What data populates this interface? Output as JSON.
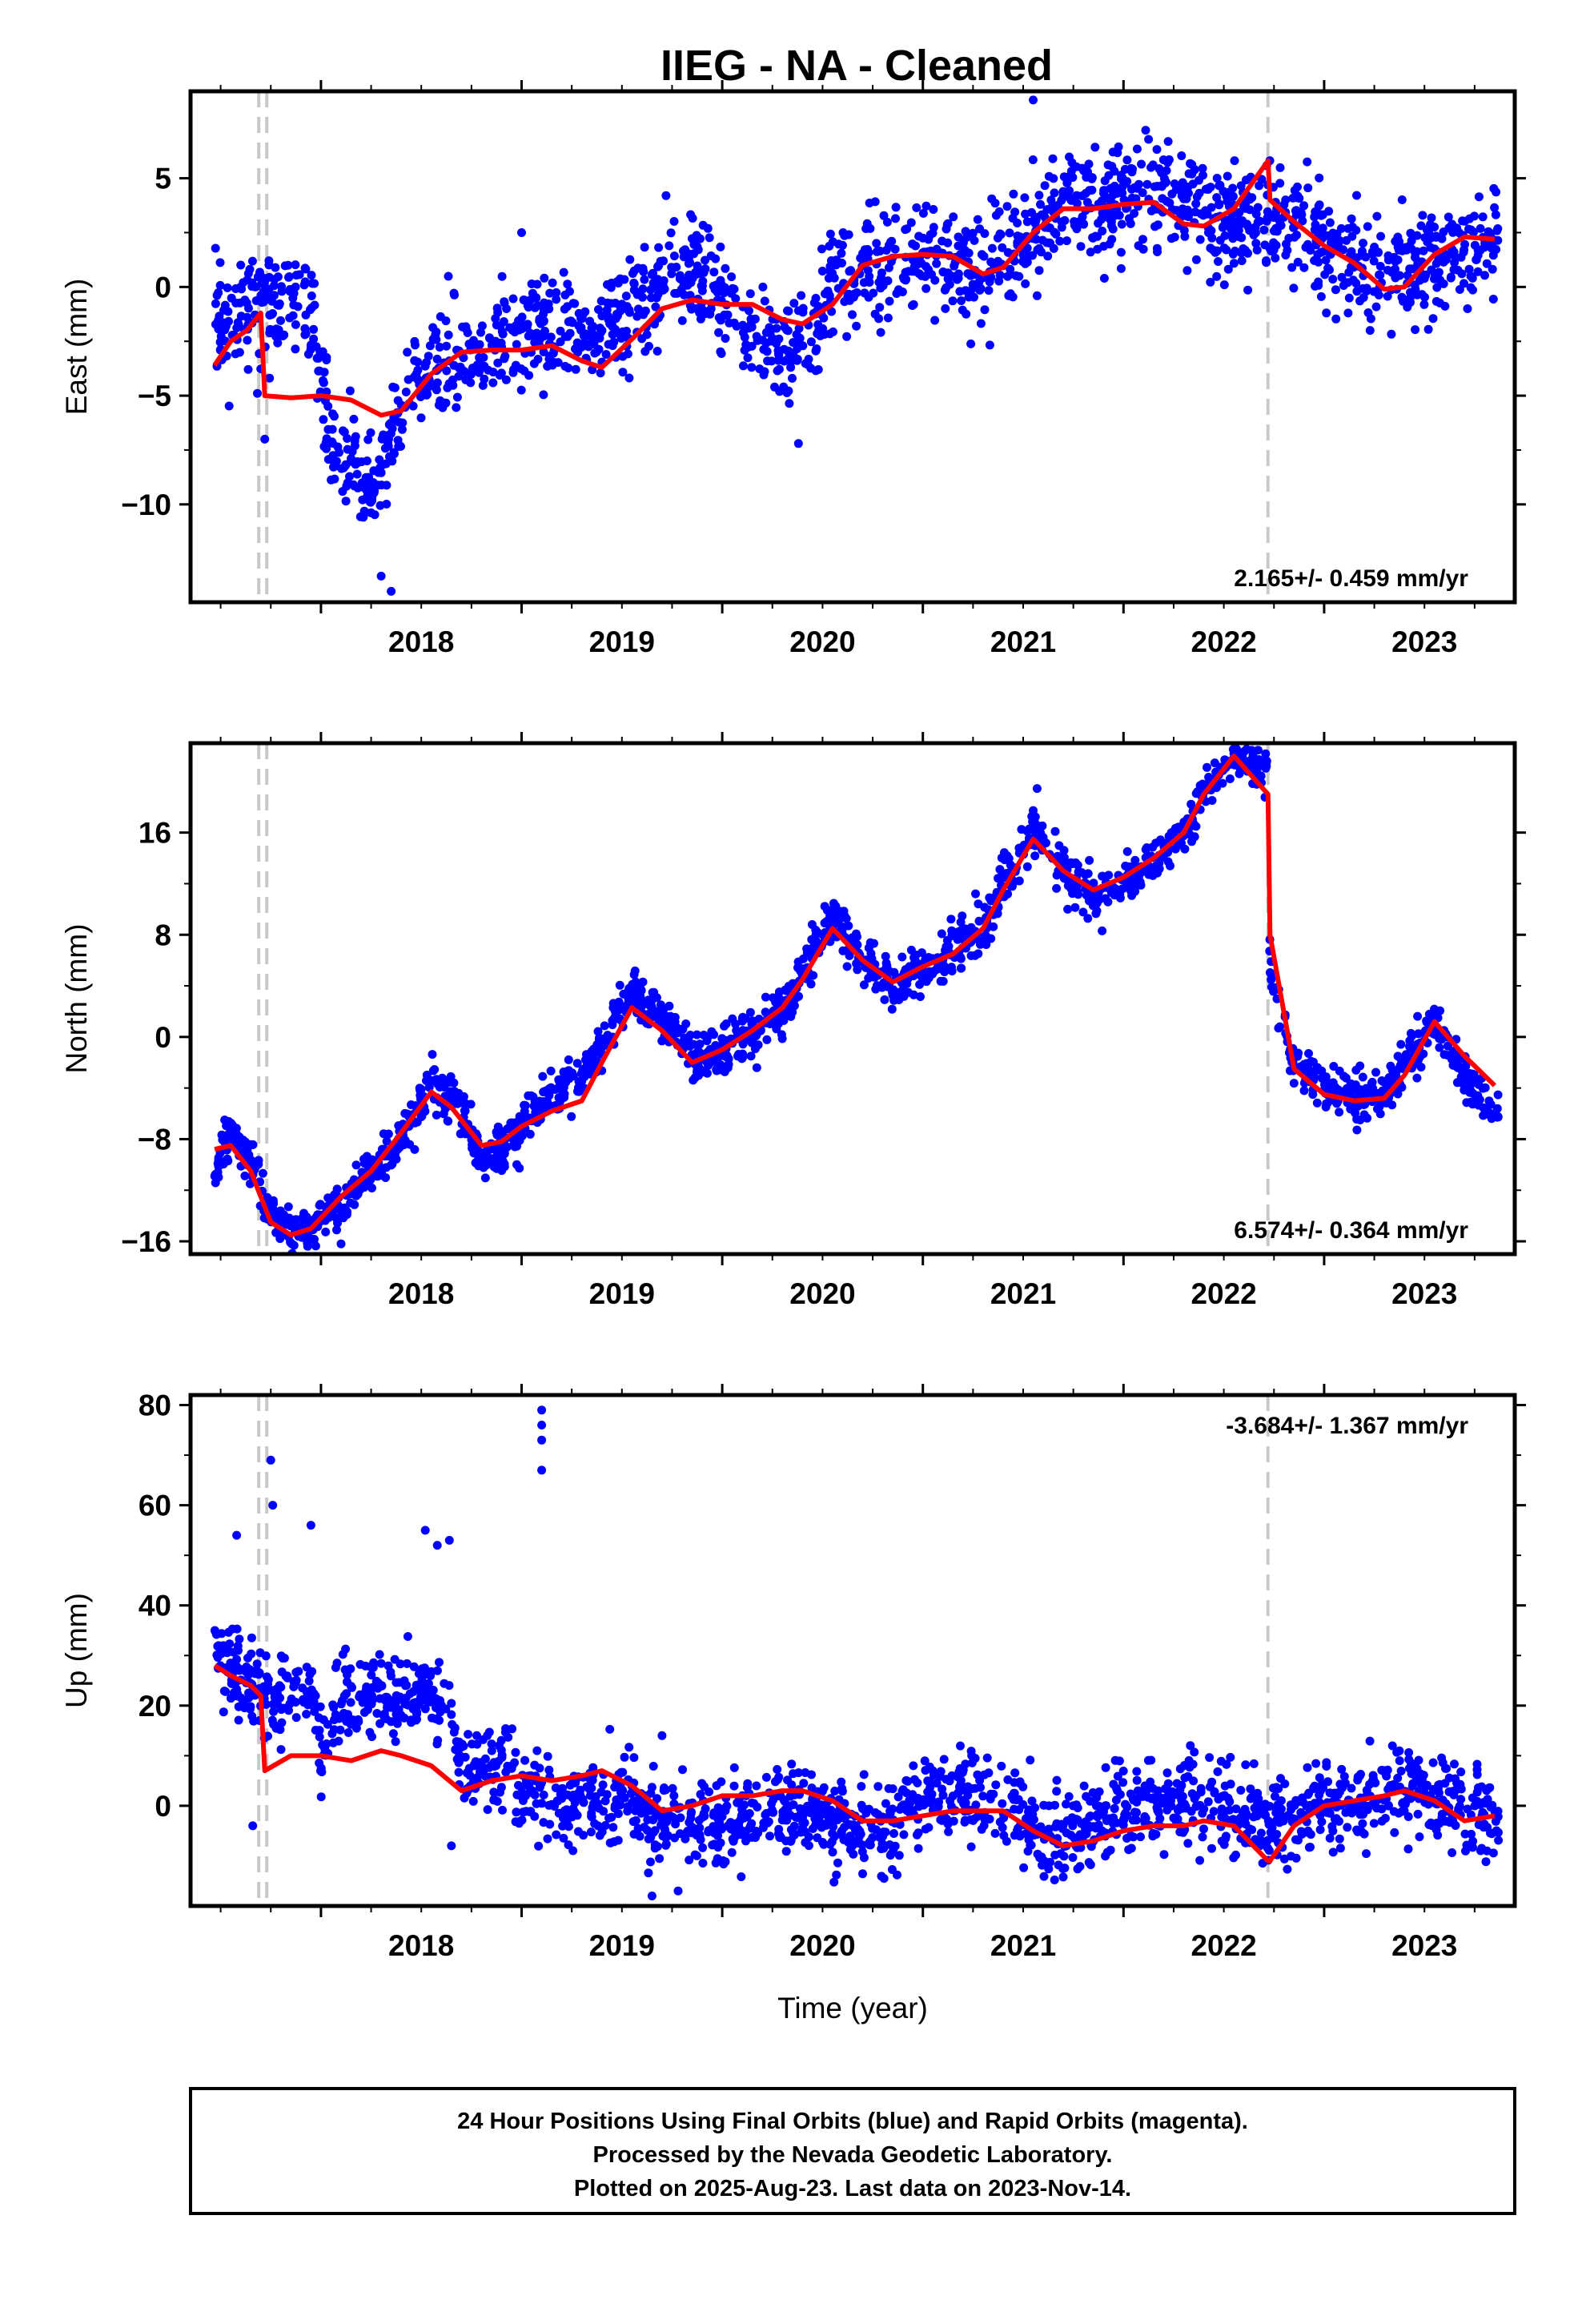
{
  "title": "IIEG  - NA - Cleaned",
  "colors": {
    "points": "#0000ff",
    "fit": "#ff0000",
    "events": "#c8c8c8",
    "frame": "#000000"
  },
  "chart_data": [
    {
      "type": "scatter",
      "ylabel": "East (mm)",
      "xlabel": "",
      "xlim": [
        2017.35,
        2023.95
      ],
      "ylim": [
        -14.5,
        9
      ],
      "yticks": [
        5,
        0,
        -5,
        -10
      ],
      "xticks": [
        2018,
        2019,
        2020,
        2021,
        2022,
        2023
      ],
      "rate_text": "2.165+/- 0.459 mm/yr",
      "rate_position": "bottom-right",
      "event_lines": [
        2017.69,
        2017.73,
        2022.72
      ],
      "fit": {
        "x": [
          2017.47,
          2017.55,
          2017.63,
          2017.7,
          2017.72,
          2017.85,
          2018.0,
          2018.15,
          2018.3,
          2018.4,
          2018.55,
          2018.7,
          2018.85,
          2019.0,
          2019.15,
          2019.3,
          2019.4,
          2019.55,
          2019.7,
          2019.85,
          2020.0,
          2020.15,
          2020.3,
          2020.4,
          2020.55,
          2020.7,
          2020.85,
          2021.0,
          2021.15,
          2021.3,
          2021.4,
          2021.55,
          2021.7,
          2021.85,
          2022.0,
          2022.15,
          2022.3,
          2022.4,
          2022.55,
          2022.72,
          2022.73,
          2022.85,
          2023.0,
          2023.15,
          2023.3,
          2023.4,
          2023.55,
          2023.7,
          2023.85
        ],
        "y": [
          -3.6,
          -2.5,
          -2.0,
          -1.2,
          -5.0,
          -5.1,
          -5.0,
          -5.2,
          -5.9,
          -5.7,
          -4.0,
          -3.0,
          -2.9,
          -2.9,
          -2.7,
          -3.4,
          -3.7,
          -2.4,
          -1.0,
          -0.6,
          -0.8,
          -0.8,
          -1.5,
          -1.7,
          -0.8,
          1.0,
          1.4,
          1.5,
          1.4,
          0.6,
          0.9,
          2.5,
          3.6,
          3.6,
          3.8,
          3.9,
          2.9,
          2.8,
          3.6,
          5.8,
          4.0,
          3.0,
          1.9,
          1.1,
          -0.1,
          0.0,
          1.5,
          2.3,
          2.2
        ]
      },
      "series_model": {
        "t0": 2017.47,
        "t1": 2023.87,
        "n": 1900,
        "points": [
          [
            2017.47,
            -1.5
          ],
          [
            2017.72,
            -0.8
          ],
          [
            2017.73,
            -0.8
          ],
          [
            2017.95,
            -0.8
          ],
          [
            2018.05,
            -7.5
          ],
          [
            2018.25,
            -9.5
          ],
          [
            2018.45,
            -4.5
          ],
          [
            2018.65,
            -3.2
          ],
          [
            2018.85,
            -2.8
          ],
          [
            2019.0,
            -2.5
          ],
          [
            2019.15,
            -1.8
          ],
          [
            2019.35,
            -2.6
          ],
          [
            2019.55,
            -1.2
          ],
          [
            2019.75,
            0.6
          ],
          [
            2019.9,
            0.4
          ],
          [
            2020.1,
            -2.2
          ],
          [
            2020.3,
            -3.0
          ],
          [
            2020.45,
            -2.2
          ],
          [
            2020.55,
            0.5
          ],
          [
            2020.8,
            1.0
          ],
          [
            2021.0,
            1.5
          ],
          [
            2021.2,
            0.8
          ],
          [
            2021.4,
            0.8
          ],
          [
            2021.55,
            3.0
          ],
          [
            2021.75,
            4.2
          ],
          [
            2021.9,
            3.5
          ],
          [
            2022.05,
            4.8
          ],
          [
            2022.25,
            4.0
          ],
          [
            2022.45,
            3.0
          ],
          [
            2022.6,
            3.0
          ],
          [
            2022.72,
            3.0
          ],
          [
            2022.73,
            3.2
          ],
          [
            2022.9,
            2.5
          ],
          [
            2023.1,
            1.5
          ],
          [
            2023.3,
            0.2
          ],
          [
            2023.45,
            0.8
          ],
          [
            2023.6,
            1.5
          ],
          [
            2023.87,
            2.0
          ]
        ],
        "noise": 1.2,
        "outliers": [
          [
            2017.72,
            -7.0
          ],
          [
            2018.35,
            -14.0
          ],
          [
            2018.3,
            -13.3
          ],
          [
            2019.0,
            2.5
          ],
          [
            2021.55,
            8.6
          ],
          [
            2019.72,
            4.2
          ],
          [
            2020.38,
            -7.2
          ]
        ]
      }
    },
    {
      "type": "scatter",
      "ylabel": "North (mm)",
      "xlabel": "",
      "xlim": [
        2017.35,
        2023.95
      ],
      "ylim": [
        -17,
        23
      ],
      "yticks": [
        16,
        8,
        0,
        -8,
        -16
      ],
      "xticks": [
        2018,
        2019,
        2020,
        2021,
        2022,
        2023
      ],
      "rate_text": "6.574+/- 0.364 mm/yr",
      "rate_position": "bottom-right",
      "event_lines": [
        2017.69,
        2017.73,
        2022.72
      ],
      "fit": {
        "x": [
          2017.47,
          2017.55,
          2017.65,
          2017.75,
          2017.85,
          2017.95,
          2018.1,
          2018.25,
          2018.4,
          2018.55,
          2018.65,
          2018.8,
          2018.9,
          2019.0,
          2019.15,
          2019.3,
          2019.4,
          2019.55,
          2019.7,
          2019.85,
          2020.0,
          2020.15,
          2020.3,
          2020.4,
          2020.55,
          2020.7,
          2020.85,
          2021.0,
          2021.15,
          2021.3,
          2021.4,
          2021.55,
          2021.7,
          2021.85,
          2022.0,
          2022.15,
          2022.3,
          2022.4,
          2022.55,
          2022.72,
          2022.73,
          2022.85,
          2023.0,
          2023.15,
          2023.3,
          2023.4,
          2023.55,
          2023.7,
          2023.85
        ],
        "y": [
          -8.8,
          -8.5,
          -10.5,
          -14.5,
          -15.5,
          -15.0,
          -12.5,
          -10.5,
          -7.5,
          -4.3,
          -5.5,
          -8.5,
          -8.2,
          -7.0,
          -5.8,
          -5.0,
          -2.0,
          2.3,
          0.5,
          -2.0,
          -1.0,
          0.5,
          2.3,
          4.5,
          8.5,
          6.0,
          4.3,
          5.5,
          6.5,
          8.5,
          11.5,
          15.5,
          13.0,
          11.5,
          12.5,
          14.0,
          16.0,
          19.0,
          22.0,
          19.0,
          8.0,
          -2.5,
          -4.5,
          -5.0,
          -4.8,
          -3.0,
          1.2,
          -1.5,
          -3.8
        ]
      },
      "series_model": {
        "t0": 2017.47,
        "t1": 2023.87,
        "n": 1900,
        "points": [
          [
            2017.47,
            -10.5
          ],
          [
            2017.55,
            -7.5
          ],
          [
            2017.65,
            -9.5
          ],
          [
            2017.75,
            -14.0
          ],
          [
            2017.85,
            -15.5
          ],
          [
            2017.95,
            -15.0
          ],
          [
            2018.1,
            -13.0
          ],
          [
            2018.25,
            -10.5
          ],
          [
            2018.4,
            -8.0
          ],
          [
            2018.55,
            -3.5
          ],
          [
            2018.65,
            -4.5
          ],
          [
            2018.8,
            -9.5
          ],
          [
            2018.9,
            -9.0
          ],
          [
            2019.0,
            -7.0
          ],
          [
            2019.15,
            -4.5
          ],
          [
            2019.3,
            -3.5
          ],
          [
            2019.4,
            -0.5
          ],
          [
            2019.55,
            3.5
          ],
          [
            2019.7,
            1.5
          ],
          [
            2019.85,
            -1.5
          ],
          [
            2020.0,
            -1.0
          ],
          [
            2020.15,
            0.0
          ],
          [
            2020.3,
            2.0
          ],
          [
            2020.4,
            5.0
          ],
          [
            2020.55,
            9.5
          ],
          [
            2020.7,
            6.0
          ],
          [
            2020.85,
            4.0
          ],
          [
            2021.0,
            5.0
          ],
          [
            2021.15,
            6.5
          ],
          [
            2021.3,
            8.5
          ],
          [
            2021.4,
            12.0
          ],
          [
            2021.55,
            16.5
          ],
          [
            2021.7,
            13.0
          ],
          [
            2021.85,
            11.0
          ],
          [
            2022.0,
            12.0
          ],
          [
            2022.15,
            13.5
          ],
          [
            2022.3,
            16.0
          ],
          [
            2022.4,
            19.0
          ],
          [
            2022.5,
            21.5
          ],
          [
            2022.72,
            21.5
          ],
          [
            2022.73,
            5.0
          ],
          [
            2022.85,
            -2.0
          ],
          [
            2023.0,
            -4.0
          ],
          [
            2023.15,
            -4.5
          ],
          [
            2023.3,
            -4.5
          ],
          [
            2023.4,
            -2.5
          ],
          [
            2023.55,
            1.5
          ],
          [
            2023.7,
            -3.0
          ],
          [
            2023.87,
            -6.5
          ]
        ],
        "noise": 0.9,
        "outliers": [
          [
            2018.1,
            -16.2
          ],
          [
            2017.52,
            -6.5
          ]
        ]
      }
    },
    {
      "type": "scatter",
      "ylabel": "Up (mm)",
      "xlabel": "Time (year)",
      "xlim": [
        2017.35,
        2023.95
      ],
      "ylim": [
        -20,
        82
      ],
      "yticks": [
        80,
        60,
        40,
        20,
        0
      ],
      "xticks": [
        2018,
        2019,
        2020,
        2021,
        2022,
        2023
      ],
      "rate_text": "-3.684+/- 1.367 mm/yr",
      "rate_position": "top-right",
      "event_lines": [
        2017.69,
        2017.73,
        2022.72
      ],
      "fit": {
        "x": [
          2017.47,
          2017.55,
          2017.65,
          2017.7,
          2017.72,
          2017.85,
          2018.0,
          2018.15,
          2018.3,
          2018.4,
          2018.55,
          2018.7,
          2018.85,
          2019.0,
          2019.15,
          2019.3,
          2019.4,
          2019.55,
          2019.7,
          2019.85,
          2020.0,
          2020.15,
          2020.3,
          2020.4,
          2020.55,
          2020.7,
          2020.85,
          2021.0,
          2021.15,
          2021.3,
          2021.4,
          2021.55,
          2021.7,
          2021.85,
          2022.0,
          2022.15,
          2022.3,
          2022.4,
          2022.55,
          2022.72,
          2022.73,
          2022.85,
          2023.0,
          2023.15,
          2023.3,
          2023.4,
          2023.55,
          2023.7,
          2023.85
        ],
        "y": [
          28,
          26,
          24,
          22,
          7,
          10,
          10,
          9,
          11,
          10,
          8,
          3,
          5,
          6,
          5,
          6,
          7,
          4,
          -1,
          0,
          2,
          2,
          3,
          3,
          1,
          -3,
          -3,
          -2,
          -1,
          -1,
          -1,
          -5,
          -8,
          -7,
          -5,
          -4,
          -4,
          -3,
          -4,
          -11,
          -11,
          -4,
          0,
          1,
          2,
          3,
          1,
          -3,
          -2
        ]
      },
      "series_model": {
        "t0": 2017.47,
        "t1": 2023.87,
        "n": 1900,
        "points": [
          [
            2017.47,
            32
          ],
          [
            2017.6,
            25
          ],
          [
            2017.72,
            22
          ],
          [
            2017.73,
            22
          ],
          [
            2017.95,
            22
          ],
          [
            2018.0,
            12
          ],
          [
            2018.1,
            22
          ],
          [
            2018.4,
            22
          ],
          [
            2018.65,
            22
          ],
          [
            2018.7,
            8
          ],
          [
            2018.95,
            7
          ],
          [
            2019.0,
            3
          ],
          [
            2019.3,
            0
          ],
          [
            2019.5,
            2
          ],
          [
            2019.7,
            -4
          ],
          [
            2019.9,
            -5
          ],
          [
            2020.1,
            -3
          ],
          [
            2020.3,
            -2
          ],
          [
            2020.45,
            0
          ],
          [
            2020.6,
            -5
          ],
          [
            2020.8,
            -4
          ],
          [
            2021.0,
            1
          ],
          [
            2021.25,
            2
          ],
          [
            2021.45,
            0
          ],
          [
            2021.6,
            -6
          ],
          [
            2021.8,
            -5
          ],
          [
            2022.0,
            -1
          ],
          [
            2022.2,
            0
          ],
          [
            2022.45,
            2
          ],
          [
            2022.72,
            -5
          ],
          [
            2022.8,
            -3
          ],
          [
            2023.0,
            0
          ],
          [
            2023.2,
            1
          ],
          [
            2023.4,
            4
          ],
          [
            2023.6,
            0
          ],
          [
            2023.87,
            -2
          ]
        ],
        "noise": 4.2,
        "outliers": [
          [
            2019.1,
            79
          ],
          [
            2019.1,
            76
          ],
          [
            2019.1,
            73
          ],
          [
            2019.1,
            67
          ],
          [
            2017.75,
            69
          ],
          [
            2017.76,
            60
          ],
          [
            2017.95,
            56
          ],
          [
            2018.52,
            55
          ],
          [
            2017.58,
            54
          ],
          [
            2018.58,
            52
          ],
          [
            2018.64,
            53
          ],
          [
            2019.65,
            -18
          ],
          [
            2019.78,
            -17
          ],
          [
            2017.66,
            -4
          ],
          [
            2018.65,
            -8
          ],
          [
            2019.7,
            14
          ]
        ]
      }
    }
  ],
  "footer": {
    "line1": "24 Hour Positions Using Final Orbits (blue) and Rapid Orbits (magenta).",
    "line2": "Processed by the Nevada Geodetic Laboratory.",
    "line3": "Plotted on 2025-Aug-23. Last data on 2023-Nov-14."
  }
}
